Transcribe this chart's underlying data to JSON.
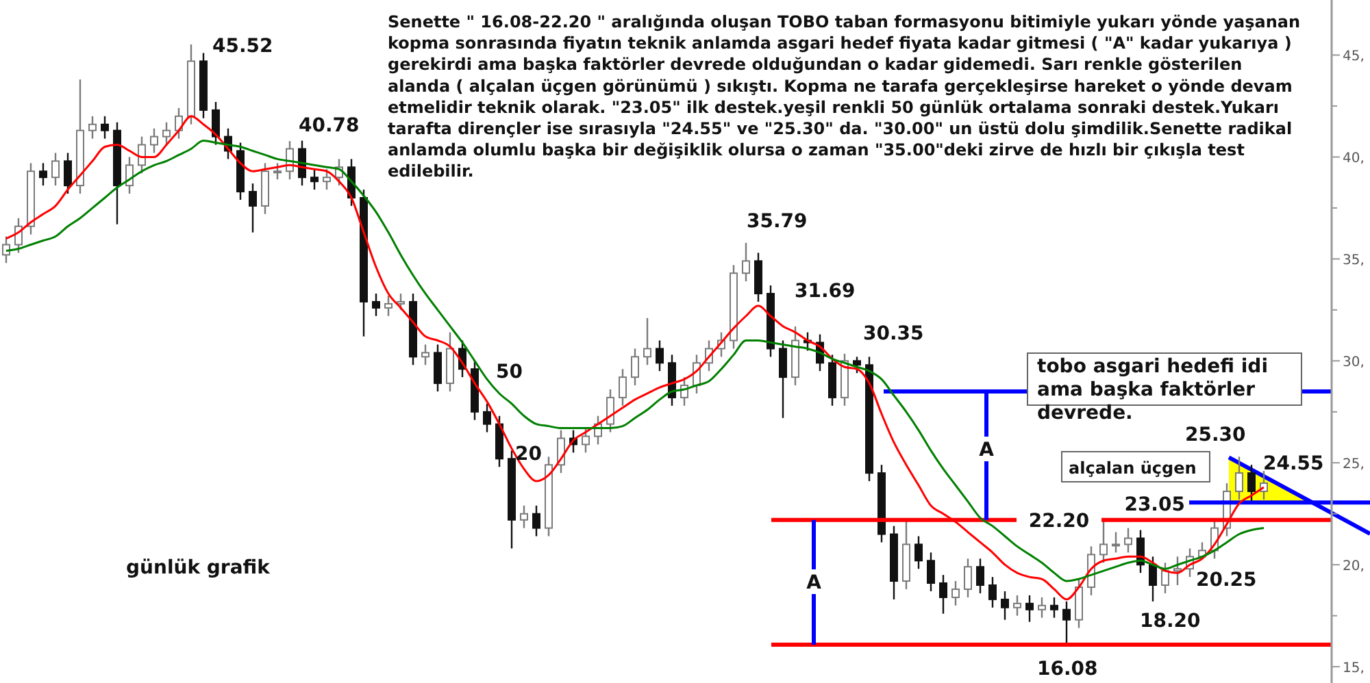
{
  "chart_data": {
    "type": "candlestick",
    "tick_labels": "y",
    "categories": [
      null,
      null,
      null,
      null,
      null,
      null,
      null,
      null,
      null,
      null,
      null,
      null,
      null,
      null,
      null,
      null,
      null,
      null,
      null,
      null,
      null,
      null,
      null,
      null,
      null,
      null,
      null,
      null,
      null,
      null,
      null,
      null,
      null,
      null,
      null,
      null,
      null,
      null,
      null,
      null,
      null,
      null,
      null,
      null,
      null,
      null,
      null,
      null,
      null,
      null,
      null,
      null,
      null,
      null,
      null,
      null,
      null,
      null,
      null,
      null,
      null,
      null,
      null,
      null,
      null,
      null,
      null,
      null,
      null,
      null,
      null,
      null,
      null,
      null,
      null,
      null,
      null,
      null,
      null,
      null,
      null,
      null,
      null,
      null,
      null,
      null,
      null,
      null,
      null,
      null,
      null,
      null,
      null,
      null,
      null,
      null,
      null,
      null,
      null,
      null,
      null,
      null,
      null,
      null,
      null,
      null,
      null,
      null
    ],
    "ohlc": [
      [
        35.2,
        36.1,
        34.8,
        35.7
      ],
      [
        35.7,
        37.0,
        35.3,
        36.6
      ],
      [
        36.6,
        39.7,
        36.2,
        39.3
      ],
      [
        39.3,
        39.7,
        38.6,
        39.0
      ],
      [
        39.0,
        40.2,
        38.6,
        39.8
      ],
      [
        39.8,
        40.2,
        38.2,
        38.6
      ],
      [
        38.6,
        43.8,
        38.2,
        41.3
      ],
      [
        41.3,
        42.0,
        40.9,
        41.6
      ],
      [
        41.6,
        42.0,
        40.9,
        41.3
      ],
      [
        41.3,
        41.7,
        36.7,
        38.6
      ],
      [
        38.6,
        40.0,
        38.2,
        39.6
      ],
      [
        39.6,
        41.0,
        39.2,
        40.6
      ],
      [
        40.6,
        41.4,
        40.2,
        41.0
      ],
      [
        41.0,
        41.7,
        40.6,
        41.3
      ],
      [
        41.3,
        42.4,
        40.9,
        42.0
      ],
      [
        42.0,
        45.52,
        41.6,
        44.7
      ],
      [
        44.7,
        45.1,
        41.9,
        42.3
      ],
      [
        42.3,
        42.7,
        40.6,
        41.0
      ],
      [
        41.0,
        41.4,
        39.9,
        40.3
      ],
      [
        40.3,
        40.7,
        37.9,
        38.3
      ],
      [
        38.3,
        38.7,
        36.3,
        37.6
      ],
      [
        37.6,
        39.7,
        37.2,
        39.3
      ],
      [
        39.3,
        39.7,
        38.9,
        39.3
      ],
      [
        39.3,
        40.78,
        38.9,
        40.4
      ],
      [
        40.4,
        40.8,
        38.6,
        39.0
      ],
      [
        39.0,
        39.4,
        38.4,
        38.8
      ],
      [
        38.8,
        39.4,
        38.4,
        39.0
      ],
      [
        39.0,
        39.9,
        38.6,
        39.5
      ],
      [
        39.5,
        39.9,
        37.6,
        38.0
      ],
      [
        38.0,
        38.4,
        31.2,
        32.9
      ],
      [
        32.9,
        33.3,
        32.2,
        32.6
      ],
      [
        32.6,
        33.2,
        32.2,
        32.8
      ],
      [
        32.8,
        33.3,
        32.5,
        32.9
      ],
      [
        32.9,
        33.3,
        29.8,
        30.2
      ],
      [
        30.2,
        30.8,
        29.8,
        30.4
      ],
      [
        30.4,
        30.8,
        28.5,
        28.9
      ],
      [
        28.9,
        31.4,
        28.5,
        30.6
      ],
      [
        30.6,
        31.0,
        29.2,
        29.6
      ],
      [
        29.6,
        30.0,
        27.1,
        27.5
      ],
      [
        27.5,
        27.9,
        26.5,
        26.9
      ],
      [
        26.9,
        27.3,
        24.8,
        25.2
      ],
      [
        25.2,
        25.6,
        20.8,
        22.2
      ],
      [
        22.2,
        22.9,
        21.8,
        22.5
      ],
      [
        22.5,
        22.9,
        21.4,
        21.8
      ],
      [
        21.8,
        25.3,
        21.4,
        24.9
      ],
      [
        24.9,
        26.6,
        24.5,
        26.2
      ],
      [
        26.2,
        26.6,
        25.5,
        25.9
      ],
      [
        25.9,
        26.7,
        25.5,
        26.3
      ],
      [
        26.3,
        27.3,
        25.9,
        26.9
      ],
      [
        26.9,
        28.6,
        26.5,
        28.2
      ],
      [
        28.2,
        29.6,
        27.8,
        29.2
      ],
      [
        29.2,
        30.6,
        28.8,
        30.2
      ],
      [
        30.2,
        32.1,
        29.8,
        30.6
      ],
      [
        30.6,
        31.0,
        29.5,
        29.9
      ],
      [
        29.9,
        30.3,
        27.8,
        28.2
      ],
      [
        28.2,
        29.2,
        27.8,
        28.8
      ],
      [
        28.8,
        30.3,
        28.4,
        29.9
      ],
      [
        29.9,
        31.0,
        29.5,
        30.6
      ],
      [
        30.6,
        31.4,
        30.2,
        31.0
      ],
      [
        31.0,
        34.7,
        30.6,
        34.3
      ],
      [
        34.3,
        35.79,
        33.9,
        34.9
      ],
      [
        34.9,
        35.3,
        32.9,
        33.3
      ],
      [
        33.3,
        33.7,
        30.2,
        30.6
      ],
      [
        30.6,
        31.0,
        27.2,
        29.2
      ],
      [
        29.2,
        31.69,
        28.8,
        31.0
      ],
      [
        31.0,
        31.4,
        30.5,
        30.9
      ],
      [
        30.9,
        31.3,
        29.5,
        29.9
      ],
      [
        29.9,
        30.3,
        27.8,
        28.2
      ],
      [
        28.2,
        30.35,
        27.8,
        30.0
      ],
      [
        30.0,
        30.2,
        29.4,
        29.8
      ],
      [
        29.8,
        30.2,
        24.1,
        24.5
      ],
      [
        24.5,
        24.9,
        21.1,
        21.5
      ],
      [
        21.5,
        21.9,
        18.3,
        19.2
      ],
      [
        19.2,
        22.2,
        18.8,
        21.0
      ],
      [
        21.0,
        21.4,
        19.8,
        20.2
      ],
      [
        20.2,
        20.6,
        18.7,
        19.1
      ],
      [
        19.1,
        19.5,
        17.6,
        18.4
      ],
      [
        18.4,
        19.2,
        18.0,
        18.8
      ],
      [
        18.8,
        20.3,
        18.4,
        19.9
      ],
      [
        19.9,
        20.3,
        18.6,
        19.0
      ],
      [
        19.0,
        19.4,
        17.9,
        18.3
      ],
      [
        18.3,
        18.7,
        17.3,
        17.9
      ],
      [
        17.9,
        18.5,
        17.5,
        18.1
      ],
      [
        18.1,
        18.5,
        17.2,
        17.8
      ],
      [
        17.8,
        18.4,
        17.4,
        18.0
      ],
      [
        18.0,
        18.4,
        17.4,
        17.8
      ],
      [
        17.8,
        18.2,
        16.08,
        17.3
      ],
      [
        17.3,
        19.3,
        16.9,
        18.9
      ],
      [
        18.9,
        20.9,
        18.5,
        20.5
      ],
      [
        20.5,
        22.2,
        20.1,
        21.0
      ],
      [
        21.0,
        21.6,
        20.6,
        21.0
      ],
      [
        21.0,
        21.8,
        20.6,
        21.3
      ],
      [
        21.3,
        21.7,
        19.6,
        20.0
      ],
      [
        20.0,
        20.4,
        18.2,
        19.0
      ],
      [
        19.0,
        20.1,
        18.6,
        19.7
      ],
      [
        19.7,
        20.4,
        19.0,
        19.8
      ],
      [
        19.8,
        20.8,
        19.4,
        20.4
      ],
      [
        20.4,
        21.1,
        20.3,
        20.7
      ],
      [
        20.7,
        22.2,
        20.3,
        21.8
      ],
      [
        21.8,
        24.0,
        21.4,
        23.6
      ],
      [
        23.6,
        25.3,
        23.2,
        24.5
      ],
      [
        24.5,
        24.9,
        23.05,
        23.6
      ],
      [
        23.6,
        24.6,
        23.2,
        24.0
      ],
      null,
      null,
      null,
      null,
      null
    ],
    "series": [
      {
        "name": "20",
        "type": "line",
        "color": "#ff0000",
        "values": [
          36.0,
          36.3,
          36.8,
          37.2,
          37.6,
          38.4,
          39.1,
          39.8,
          40.5,
          40.6,
          40.3,
          40.0,
          40.0,
          40.6,
          41.3,
          42.0,
          41.6,
          41.1,
          40.4,
          39.7,
          39.3,
          39.4,
          39.5,
          39.6,
          39.5,
          39.4,
          39.3,
          38.8,
          38.0,
          36.3,
          34.6,
          33.3,
          32.6,
          31.9,
          31.2,
          31.0,
          30.7,
          29.9,
          28.9,
          28.0,
          26.9,
          25.7,
          24.7,
          24.1,
          24.4,
          25.2,
          26.1,
          26.5,
          26.9,
          27.3,
          27.7,
          28.1,
          28.4,
          28.7,
          28.9,
          29.1,
          29.5,
          30.2,
          30.9,
          31.6,
          32.2,
          32.7,
          32.2,
          31.7,
          31.4,
          31.0,
          30.7,
          30.1,
          29.7,
          29.6,
          28.9,
          27.4,
          26.0,
          24.9,
          23.9,
          22.9,
          22.5,
          22.1,
          21.6,
          21.1,
          20.6,
          20.0,
          19.6,
          19.4,
          19.3,
          18.8,
          18.3,
          18.9,
          19.8,
          20.2,
          20.3,
          20.4,
          20.4,
          20.1,
          19.7,
          19.6,
          20.0,
          20.3,
          21.0,
          22.0,
          23.0,
          23.4,
          23.8,
          null,
          null,
          null,
          null,
          null
        ]
      },
      {
        "name": "50",
        "type": "line",
        "color": "#008000",
        "values": [
          35.4,
          35.5,
          35.7,
          35.9,
          36.1,
          36.6,
          37.0,
          37.5,
          38.0,
          38.5,
          38.9,
          39.3,
          39.6,
          39.8,
          40.1,
          40.4,
          40.8,
          40.7,
          40.6,
          40.5,
          40.3,
          40.1,
          39.9,
          39.8,
          39.7,
          39.6,
          39.5,
          39.4,
          38.8,
          38.1,
          37.3,
          36.3,
          35.2,
          34.2,
          33.3,
          32.5,
          31.7,
          30.9,
          30.0,
          29.1,
          28.4,
          27.9,
          27.3,
          26.9,
          26.8,
          26.7,
          26.7,
          26.7,
          26.7,
          26.7,
          26.8,
          27.2,
          27.6,
          28.1,
          28.5,
          28.6,
          28.8,
          29.0,
          29.6,
          30.3,
          31.0,
          31.0,
          30.9,
          30.8,
          30.7,
          30.6,
          30.4,
          30.1,
          29.9,
          29.7,
          29.5,
          29.1,
          28.3,
          27.5,
          26.6,
          25.6,
          24.7,
          23.9,
          23.1,
          22.3,
          21.9,
          21.4,
          20.9,
          20.5,
          20.1,
          19.6,
          19.2,
          19.3,
          19.5,
          19.7,
          19.9,
          20.1,
          20.2,
          20.0,
          19.8,
          20.0,
          20.2,
          20.4,
          20.7,
          21.1,
          21.5,
          21.7,
          21.8,
          null,
          null,
          null,
          null,
          null
        ]
      }
    ],
    "ylim": [
      14.2,
      47.7
    ],
    "yticks": [
      {
        "value": 15,
        "label": "15,"
      },
      {
        "value": 17.5,
        "label": null
      },
      {
        "value": 20,
        "label": "20,"
      },
      {
        "value": 22.5,
        "label": null
      },
      {
        "value": 25,
        "label": "25,"
      },
      {
        "value": 27.5,
        "label": null
      },
      {
        "value": 30,
        "label": "30,"
      },
      {
        "value": 32.5,
        "label": null
      },
      {
        "value": 35,
        "label": "35,"
      },
      {
        "value": 37.5,
        "label": null
      },
      {
        "value": 40,
        "label": "40,"
      },
      {
        "value": 42.5,
        "label": null
      },
      {
        "value": 45,
        "label": "45,"
      }
    ],
    "ref_lines": [
      {
        "axis": "y",
        "value": 28.5,
        "color": "#0000ff"
      },
      {
        "axis": "y",
        "value": 22.2,
        "label": "22.20",
        "color": "#ff0000"
      },
      {
        "axis": "y",
        "value": 16.08,
        "color": "#ff0000"
      },
      {
        "axis": "y",
        "value": 23.05,
        "color": "#0000ff"
      }
    ],
    "annotations": [
      "Senette \" 16.08-22.20 \" aralığında oluşan TOBO taban formasyonu bitimiyle yukarı yönde yaşanan kopma sonrasında fiyatın teknik anlamda asgari hedef fiyata kadar gitmesi ( \"A\" kadar yukarıya ) gerekirdi ama başka faktörler devrede olduğundan o kadar gidemedi. Sarı renkle gösterilen alanda ( alçalan üçgen görünümü ) sıkıştı. Kopma ne tarafa gerçekleşirse hareket o yönde devam etmelidir teknik olarak. \"23.05\" ilk destek.yeşil renkli 50 günlük ortalama sonraki destek.Yukarı tarafta dirençler ise sırasıyla \"24.55\" ve \"25.30\" da. \"30.00\" un üstü dolu şimdilik.Senette radikal anlamda olumlu başka bir değişiklik olursa o zaman \"35.00\"deki zirve de hızlı bir çıkışla test edilebilir.",
      "45.52",
      "40.78",
      "35.79",
      "31.69",
      "30.35",
      "tobo asgari hedefi idi ama başka faktörler devrede.",
      "A",
      "A",
      "alçalan üçgen",
      "25.30",
      "24.55",
      "23.05",
      "20.25",
      "18.20",
      "16.08",
      "günlük grafik"
    ]
  }
}
